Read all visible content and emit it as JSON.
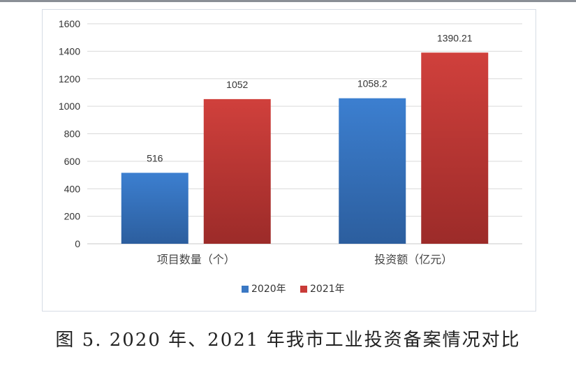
{
  "chart_data": {
    "type": "bar",
    "categories": [
      "项目数量（个）",
      "投资额（亿元）"
    ],
    "series": [
      {
        "name": "2020年",
        "values": [
          516,
          1058.2
        ],
        "labels": [
          "516",
          "1058.2"
        ],
        "color": "#3a78c4"
      },
      {
        "name": "2021年",
        "values": [
          1052,
          1390.21
        ],
        "labels": [
          "1052",
          "1390.21"
        ],
        "color": "#c93b38"
      }
    ],
    "ylim": [
      0,
      1600
    ],
    "yticks": [
      0,
      200,
      400,
      600,
      800,
      1000,
      1200,
      1400,
      1600
    ],
    "grid": true,
    "legend_position": "bottom"
  },
  "caption": "图 5. 2020 年、2021 年我市工业投资备案情况对比",
  "colors": {
    "series_2020": "#3a78c4",
    "series_2021": "#c93b38",
    "grid": "#d9d9d9",
    "frame": "#d6dce5"
  }
}
